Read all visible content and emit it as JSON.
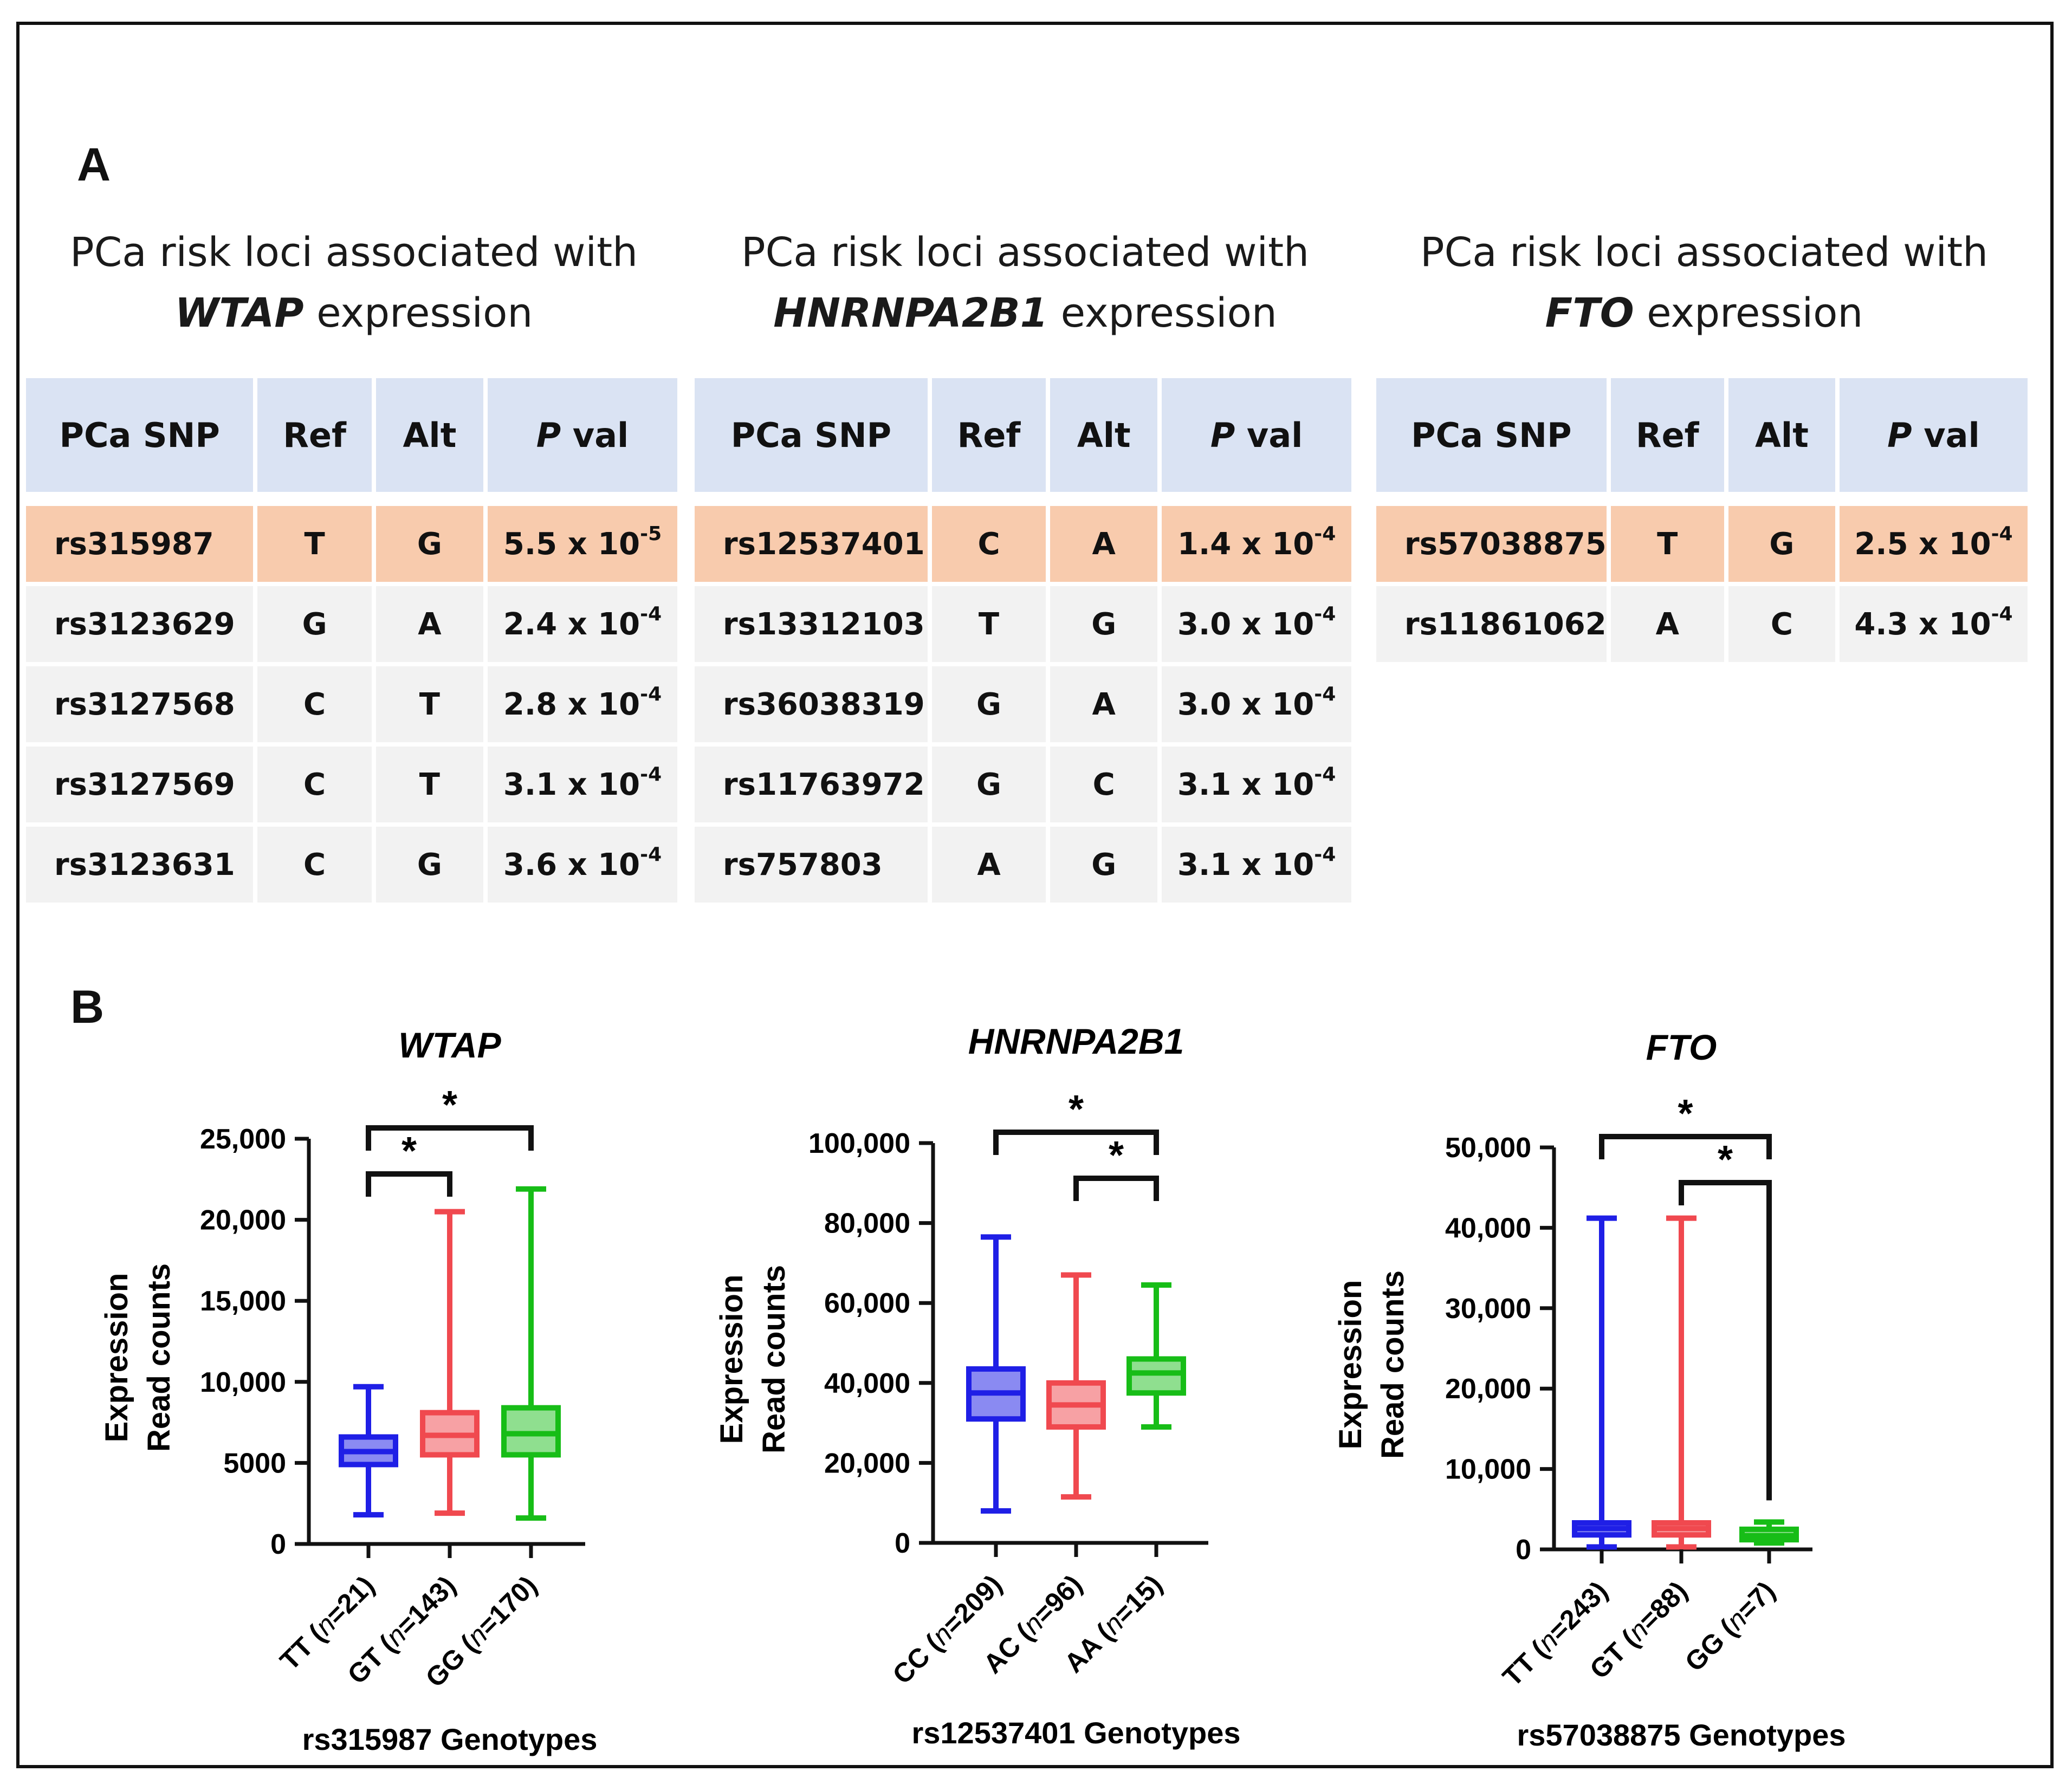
{
  "panel_a_label": "A",
  "panel_b_label": "B",
  "tables": [
    {
      "title_prefix": "PCa risk loci associated with",
      "gene": "WTAP",
      "title_suffix": "expression",
      "headers": [
        "PCa SNP",
        "Ref",
        "Alt",
        "val"
      ],
      "p_header_italic": "P",
      "rows": [
        {
          "snp": "rs315987",
          "ref": "T",
          "alt": "G",
          "p_base": "5.5 x 10",
          "p_exp": "-5",
          "highlight": true
        },
        {
          "snp": "rs3123629",
          "ref": "G",
          "alt": "A",
          "p_base": "2.4 x 10",
          "p_exp": "-4",
          "highlight": false
        },
        {
          "snp": "rs3127568",
          "ref": "C",
          "alt": "T",
          "p_base": "2.8 x 10",
          "p_exp": "-4",
          "highlight": false
        },
        {
          "snp": "rs3127569",
          "ref": "C",
          "alt": "T",
          "p_base": "3.1 x 10",
          "p_exp": "-4",
          "highlight": false
        },
        {
          "snp": "rs3123631",
          "ref": "C",
          "alt": "G",
          "p_base": "3.6 x 10",
          "p_exp": "-4",
          "highlight": false
        }
      ]
    },
    {
      "title_prefix": "PCa risk loci associated with",
      "gene": "HNRNPA2B1",
      "title_suffix": "expression",
      "headers": [
        "PCa SNP",
        "Ref",
        "Alt",
        "val"
      ],
      "p_header_italic": "P",
      "rows": [
        {
          "snp": "rs12537401",
          "ref": "C",
          "alt": "A",
          "p_base": "1.4 x 10",
          "p_exp": "-4",
          "highlight": true
        },
        {
          "snp": "rs13312103",
          "ref": "T",
          "alt": "G",
          "p_base": "3.0 x 10",
          "p_exp": "-4",
          "highlight": false
        },
        {
          "snp": "rs36038319",
          "ref": "G",
          "alt": "A",
          "p_base": "3.0 x 10",
          "p_exp": "-4",
          "highlight": false
        },
        {
          "snp": "rs11763972",
          "ref": "G",
          "alt": "C",
          "p_base": "3.1 x 10",
          "p_exp": "-4",
          "highlight": false
        },
        {
          "snp": "rs757803",
          "ref": "A",
          "alt": "G",
          "p_base": "3.1 x 10",
          "p_exp": "-4",
          "highlight": false
        }
      ]
    },
    {
      "title_prefix": "PCa risk loci associated with",
      "gene": "FTO",
      "title_suffix": "expression",
      "headers": [
        "PCa SNP",
        "Ref",
        "Alt",
        "val"
      ],
      "p_header_italic": "P",
      "rows": [
        {
          "snp": "rs57038875",
          "ref": "T",
          "alt": "G",
          "p_base": "2.5 x 10",
          "p_exp": "-4",
          "highlight": true
        },
        {
          "snp": "rs11861062",
          "ref": "A",
          "alt": "C",
          "p_base": "4.3 x 10",
          "p_exp": "-4",
          "highlight": false
        }
      ]
    }
  ],
  "chart_data": [
    {
      "type": "box",
      "title": "WTAP",
      "ylabel": [
        "Expression",
        "Read counts"
      ],
      "xlabel": "rs315987 Genotypes",
      "ylim": [
        0,
        25000
      ],
      "yticks": [
        0,
        5000,
        10000,
        15000,
        20000,
        25000
      ],
      "ytick_labels": [
        "0",
        "5000",
        "10,000",
        "15,000",
        "20,000",
        "25,000"
      ],
      "categories": [
        {
          "genotype": "TT",
          "n": "=21)",
          "color": "#1f1fe6",
          "fill": "#8a8af2",
          "min": 1800,
          "q1": 4900,
          "median": 5700,
          "q3": 6600,
          "max": 9700
        },
        {
          "genotype": "GT",
          "n": "=143)",
          "color": "#f0494f",
          "fill": "#f7a1a4",
          "min": 1900,
          "q1": 5500,
          "median": 6700,
          "q3": 8100,
          "max": 20500
        },
        {
          "genotype": "GG",
          "n": "=170)",
          "color": "#17bd17",
          "fill": "#8fdf8f",
          "min": 1600,
          "q1": 5500,
          "median": 6800,
          "q3": 8400,
          "max": 21900
        }
      ],
      "significance": [
        {
          "from": 0,
          "to": 2,
          "level": 1,
          "label": "*"
        },
        {
          "from": 0,
          "to": 1,
          "level": 0,
          "label": "*"
        }
      ]
    },
    {
      "type": "box",
      "title": "HNRNPA2B1",
      "ylabel": [
        "Expression",
        "Read counts"
      ],
      "xlabel": "rs12537401 Genotypes",
      "ylim": [
        0,
        100000
      ],
      "yticks": [
        0,
        20000,
        40000,
        60000,
        80000,
        100000
      ],
      "ytick_labels": [
        "0",
        "20,000",
        "40,000",
        "60,000",
        "80,000",
        "100,000"
      ],
      "categories": [
        {
          "genotype": "CC",
          "n": "=209)",
          "color": "#1f1fe6",
          "fill": "#8a8af2",
          "min": 8000,
          "q1": 31000,
          "median": 37500,
          "q3": 43500,
          "max": 76500
        },
        {
          "genotype": "AC",
          "n": "=96)",
          "color": "#f0494f",
          "fill": "#f7a1a4",
          "min": 11500,
          "q1": 29000,
          "median": 34500,
          "q3": 40000,
          "max": 67000
        },
        {
          "genotype": "AA",
          "n": "=15)",
          "color": "#17bd17",
          "fill": "#8fdf8f",
          "min": 29000,
          "q1": 37500,
          "median": 42500,
          "q3": 46000,
          "max": 64500
        }
      ],
      "significance": [
        {
          "from": 0,
          "to": 2,
          "level": 1,
          "label": "*"
        },
        {
          "from": 1,
          "to": 2,
          "level": 0,
          "label": "*"
        }
      ]
    },
    {
      "type": "box",
      "title": "FTO",
      "ylabel": [
        "Expression",
        "Read counts"
      ],
      "xlabel": "rs57038875 Genotypes",
      "ylim": [
        0,
        50000
      ],
      "yticks": [
        0,
        10000,
        20000,
        30000,
        40000,
        50000
      ],
      "ytick_labels": [
        "0",
        "10,000",
        "20,000",
        "30,000",
        "40,000",
        "50,000"
      ],
      "categories": [
        {
          "genotype": "TT",
          "n": "=243)",
          "color": "#1f1fe6",
          "fill": "#8a8af2",
          "min": 300,
          "q1": 1800,
          "median": 2600,
          "q3": 3300,
          "max": 41200
        },
        {
          "genotype": "GT",
          "n": "=88)",
          "color": "#f0494f",
          "fill": "#f7a1a4",
          "min": 300,
          "q1": 1800,
          "median": 2600,
          "q3": 3300,
          "max": 41200
        },
        {
          "genotype": "GG",
          "n": "=7)",
          "color": "#17bd17",
          "fill": "#8fdf8f",
          "min": 800,
          "q1": 1200,
          "median": 1700,
          "q3": 2500,
          "max": 3400
        }
      ],
      "significance": [
        {
          "from": 0,
          "to": 2,
          "level": 1,
          "label": "*"
        },
        {
          "from": 1,
          "to": 2,
          "level": 0,
          "label": "*",
          "drop_to_box": true
        }
      ]
    }
  ]
}
